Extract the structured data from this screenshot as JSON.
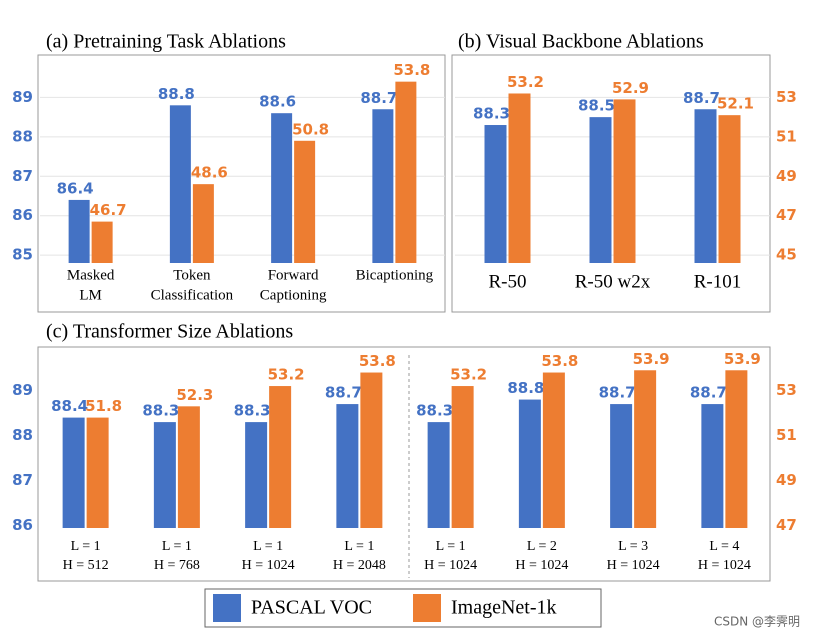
{
  "chart_data": [
    {
      "type": "bar",
      "title": "(a) Pretraining Task Ablations",
      "categories": [
        [
          "Masked",
          "LM"
        ],
        [
          "Token",
          "Classification"
        ],
        [
          "Forward",
          "Captioning"
        ],
        [
          "Bicaptioning"
        ]
      ],
      "series": [
        {
          "name": "PASCAL VOC",
          "color": "#4472c4",
          "values": [
            86.4,
            88.8,
            88.6,
            88.7
          ]
        },
        {
          "name": "ImageNet-1k",
          "color": "#ed7d31",
          "axis": "y2",
          "values": [
            46.7,
            48.6,
            50.8,
            53.8
          ]
        }
      ],
      "ylim": [
        84.8,
        90
      ],
      "yticks": [
        85,
        86,
        87,
        88,
        89
      ],
      "y2lim": [
        44.6,
        55
      ],
      "grid": true
    },
    {
      "type": "bar",
      "title": "(b) Visual Backbone Ablations",
      "categories": [
        [
          "R-50"
        ],
        [
          "R-50 w2x"
        ],
        [
          "R-101"
        ]
      ],
      "series": [
        {
          "color": "#4472c4",
          "values": [
            88.3,
            88.5,
            88.7
          ]
        },
        {
          "color": "#ed7d31",
          "axis": "y2",
          "values": [
            53.2,
            52.9,
            52.1
          ]
        }
      ],
      "ylim": [
        84.8,
        90
      ],
      "y2lim": [
        44.6,
        55
      ],
      "y2ticks": [
        45,
        47,
        49,
        51,
        53
      ],
      "grid": true
    },
    {
      "type": "bar",
      "title": "(c) Transformer Size Ablations",
      "categories": [
        [
          "L = 1",
          "H = 512"
        ],
        [
          "L = 1",
          "H = 768"
        ],
        [
          "L = 1",
          "H = 1024"
        ],
        [
          "L = 1",
          "H = 2048"
        ],
        [
          "L = 1",
          "H = 1024"
        ],
        [
          "L = 2",
          "H = 1024"
        ],
        [
          "L = 3",
          "H = 1024"
        ],
        [
          "L = 4",
          "H = 1024"
        ]
      ],
      "series": [
        {
          "color": "#4472c4",
          "values": [
            88.4,
            88.3,
            88.3,
            88.7,
            88.3,
            88.8,
            88.7,
            88.7
          ]
        },
        {
          "color": "#ed7d31",
          "axis": "y2",
          "values": [
            51.8,
            52.3,
            53.2,
            53.8,
            53.2,
            53.8,
            53.9,
            53.9
          ]
        }
      ],
      "ylim": [
        85.95,
        89.9
      ],
      "yticks": [
        86,
        87,
        88,
        89
      ],
      "y2lim": [
        46.9,
        54.8
      ],
      "y2ticks": [
        47,
        49,
        51,
        53
      ],
      "grid": false
    }
  ],
  "watermark": "CSDN @李霁明"
}
